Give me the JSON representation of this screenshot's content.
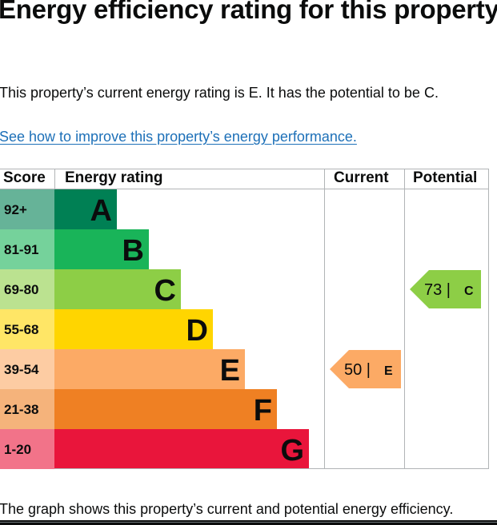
{
  "page": {
    "heading": "Energy efficiency rating for this property",
    "summary": "This property’s current energy rating is E. It has the potential to be C.",
    "improve_link": "See how to improve this property’s energy performance.",
    "footnote": "The graph shows this property’s current and potential energy efficiency."
  },
  "chart_data": {
    "type": "table",
    "columns": [
      "Score",
      "Energy rating",
      "Current",
      "Potential"
    ],
    "bands": [
      {
        "score_range": "92+",
        "letter": "A",
        "color": "#008054",
        "score_color": "#66b398"
      },
      {
        "score_range": "81-91",
        "letter": "B",
        "color": "#19b459",
        "score_color": "#75d29b"
      },
      {
        "score_range": "69-80",
        "letter": "C",
        "color": "#8dce46",
        "score_color": "#bbe290"
      },
      {
        "score_range": "55-68",
        "letter": "D",
        "color": "#ffd500",
        "score_color": "#ffe666"
      },
      {
        "score_range": "39-54",
        "letter": "E",
        "color": "#fcaa65",
        "score_color": "#fdcca3"
      },
      {
        "score_range": "21-38",
        "letter": "F",
        "color": "#ef8023",
        "score_color": "#f5b37b"
      },
      {
        "score_range": "1-20",
        "letter": "G",
        "color": "#e9153b",
        "score_color": "#f27389"
      }
    ],
    "current": {
      "score": 50,
      "rating": "E",
      "label_score": "50 |",
      "color": "#fcaa65"
    },
    "potential": {
      "score": 73,
      "rating": "C",
      "label_score": "73 |",
      "color": "#8dce46"
    }
  }
}
